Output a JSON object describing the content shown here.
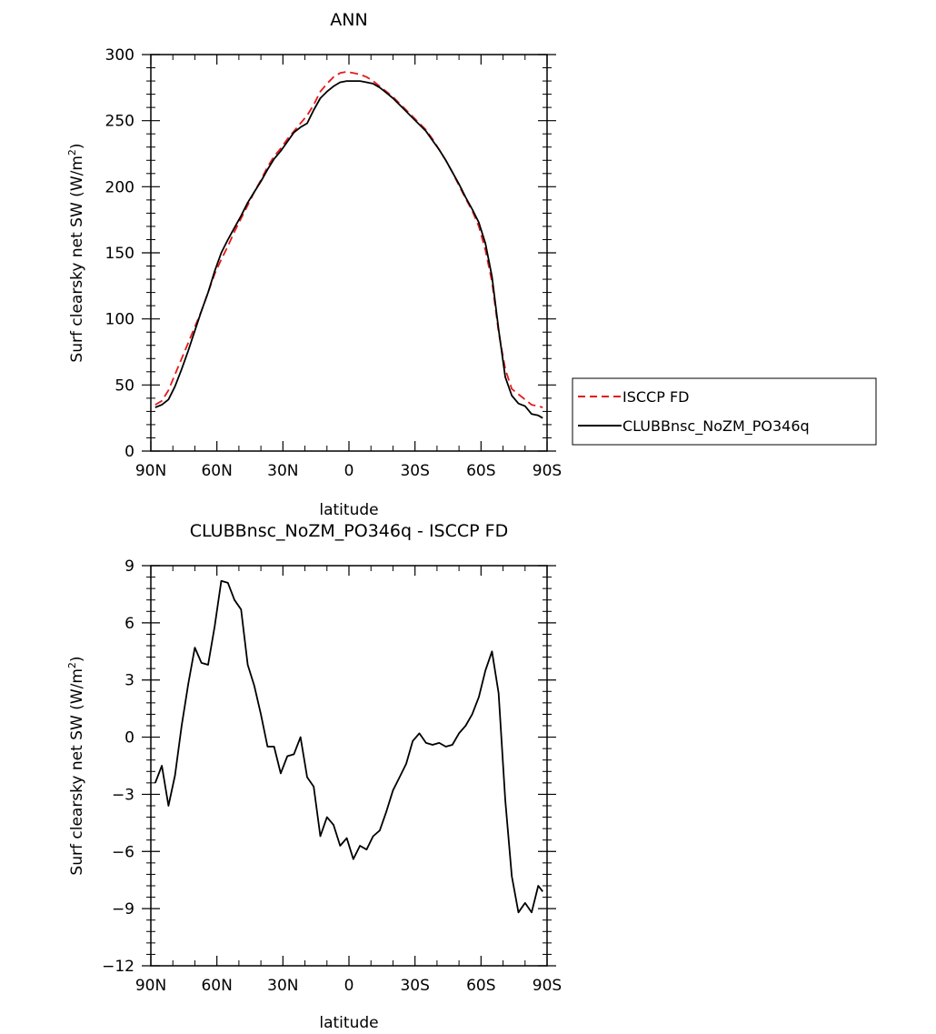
{
  "chart_data": [
    {
      "type": "line",
      "title": "ANN",
      "xlabel": "latitude",
      "ylabel": "Surf clearsky net SW (W/m²)",
      "ylabel_main": "Surf clearsky net SW (W/m",
      "ylabel_sup": "2",
      "ylabel_tail": ")",
      "xlim": [
        90,
        -90
      ],
      "ylim": [
        0,
        300
      ],
      "x_ticks": [
        90,
        60,
        30,
        0,
        -30,
        -60,
        -90
      ],
      "x_tick_labels": [
        "90N",
        "60N",
        "30N",
        "0",
        "30S",
        "60S",
        "90S"
      ],
      "y_ticks": [
        0,
        50,
        100,
        150,
        200,
        250,
        300
      ],
      "y_tick_labels": [
        "0",
        "50",
        "100",
        "150",
        "200",
        "250",
        "300"
      ],
      "grid": false,
      "legend_position": "right",
      "series": [
        {
          "name": "ISCCP FD",
          "color": "#e41a1c",
          "dash": true,
          "x": [
            88,
            85,
            82,
            79,
            76,
            73,
            70,
            67,
            64,
            61,
            58,
            55,
            52,
            49,
            46,
            43,
            40,
            37,
            34,
            31,
            28,
            25,
            22,
            19,
            16,
            13,
            10,
            7,
            4,
            1,
            -2,
            -5,
            -8,
            -11,
            -14,
            -17,
            -20,
            -23,
            -26,
            -29,
            -32,
            -35,
            -38,
            -41,
            -44,
            -47,
            -50,
            -53,
            -56,
            -59,
            -62,
            -65,
            -68,
            -71,
            -74,
            -77,
            -80,
            -83,
            -86,
            -88
          ],
          "y": [
            35,
            38,
            46,
            58,
            70,
            82,
            94,
            106,
            120,
            134,
            145,
            155,
            166,
            176,
            186,
            196,
            205,
            215,
            223,
            229,
            236,
            242,
            248,
            254,
            262,
            272,
            278,
            283,
            286,
            287,
            286,
            285,
            283,
            280,
            276,
            272,
            268,
            263,
            258,
            253,
            248,
            243,
            236,
            228,
            220,
            211,
            201,
            191,
            182,
            170,
            152,
            128,
            90,
            62,
            47,
            43,
            39,
            35,
            34,
            33
          ]
        },
        {
          "name": "CLUBBnsc_NoZM_PO346q",
          "color": "#000000",
          "dash": false,
          "x": [
            88,
            85,
            82,
            79,
            76,
            73,
            70,
            67,
            64,
            61,
            58,
            55,
            52,
            49,
            46,
            43,
            40,
            37,
            34,
            31,
            28,
            25,
            22,
            19,
            16,
            13,
            10,
            7,
            4,
            1,
            -2,
            -5,
            -8,
            -11,
            -14,
            -17,
            -20,
            -23,
            -26,
            -29,
            -32,
            -35,
            -38,
            -41,
            -44,
            -47,
            -50,
            -53,
            -56,
            -59,
            -62,
            -65,
            -68,
            -71,
            -74,
            -77,
            -80,
            -83,
            -86,
            -88
          ],
          "y": [
            33,
            35,
            39,
            49,
            62,
            76,
            91,
            106,
            120,
            136,
            150,
            160,
            169,
            178,
            188,
            196,
            204,
            213,
            221,
            227,
            234,
            241,
            245,
            248,
            258,
            267,
            272,
            276,
            279,
            280,
            280,
            280,
            279,
            278,
            275,
            271,
            267,
            262,
            257,
            252,
            247,
            242,
            235,
            228,
            220,
            211,
            202,
            192,
            183,
            173,
            157,
            132,
            92,
            56,
            42,
            36,
            34,
            28,
            27,
            25
          ]
        }
      ]
    },
    {
      "type": "line",
      "title": "CLUBBnsc_NoZM_PO346q - ISCCP FD",
      "xlabel": "latitude",
      "ylabel": "Surf clearsky net SW (W/m²)",
      "ylabel_main": "Surf clearsky net SW (W/m",
      "ylabel_sup": "2",
      "ylabel_tail": ")",
      "xlim": [
        90,
        -90
      ],
      "ylim": [
        -12,
        9
      ],
      "x_ticks": [
        90,
        60,
        30,
        0,
        -30,
        -60,
        -90
      ],
      "x_tick_labels": [
        "90N",
        "60N",
        "30N",
        "0",
        "30S",
        "60S",
        "90S"
      ],
      "y_ticks": [
        -12,
        -9,
        -6,
        -3,
        0,
        3,
        6,
        9
      ],
      "y_tick_labels": [
        "−12",
        "−9",
        "−6",
        "−3",
        "0",
        "3",
        "6",
        "9"
      ],
      "grid": false,
      "series": [
        {
          "color": "#000000",
          "dash": false,
          "x": [
            88,
            85,
            82,
            79,
            76,
            73,
            70,
            67,
            64,
            61,
            58,
            55,
            52,
            49,
            46,
            43,
            40,
            37,
            34,
            31,
            28,
            25,
            22,
            19,
            16,
            13,
            10,
            7,
            4,
            1,
            -2,
            -5,
            -8,
            -11,
            -14,
            -17,
            -20,
            -23,
            -26,
            -29,
            -32,
            -35,
            -38,
            -41,
            -44,
            -47,
            -50,
            -53,
            -56,
            -59,
            -62,
            -65,
            -68,
            -71,
            -74,
            -77,
            -80,
            -83,
            -86,
            -88
          ],
          "y": [
            -2.4,
            -1.5,
            -3.6,
            -2.0,
            0.6,
            2.8,
            4.7,
            3.9,
            3.8,
            5.8,
            8.2,
            8.1,
            7.2,
            6.7,
            3.8,
            2.7,
            1.2,
            -0.5,
            -0.5,
            -1.9,
            -1.0,
            -0.9,
            0.0,
            -2.1,
            -2.6,
            -5.2,
            -4.2,
            -4.6,
            -5.7,
            -5.3,
            -6.4,
            -5.7,
            -5.9,
            -5.2,
            -4.9,
            -3.9,
            -2.8,
            -2.1,
            -1.4,
            -0.2,
            0.2,
            -0.3,
            -0.4,
            -0.3,
            -0.5,
            -0.4,
            0.2,
            0.6,
            1.2,
            2.1,
            3.5,
            4.5,
            2.3,
            -3.3,
            -7.3,
            -9.2,
            -8.7,
            -9.2,
            -7.8,
            -8.1
          ]
        }
      ]
    }
  ]
}
